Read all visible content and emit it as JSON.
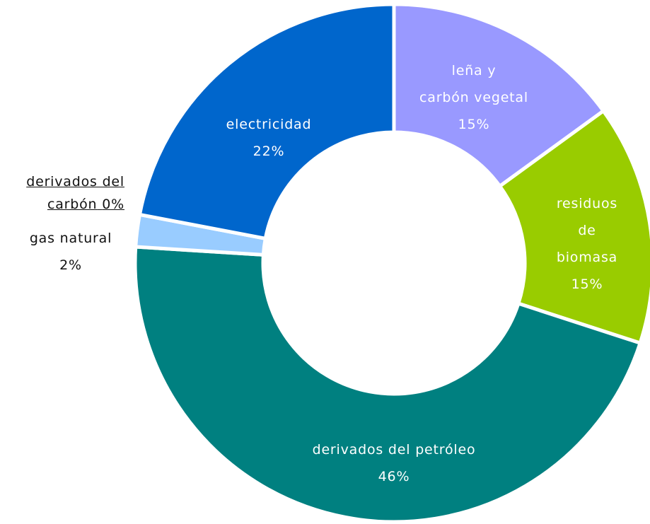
{
  "chart_data": {
    "type": "donut",
    "categories": [
      "leña y\ncarbón vegetal",
      "residuos de\nbiomasa",
      "derivados del petróleo",
      "gas natural",
      "derivados del\ncarbón",
      "electricidad"
    ],
    "values": [
      15,
      15,
      46,
      2,
      0,
      22
    ],
    "value_labels": [
      "15%",
      "15%",
      "46%",
      "2%",
      "0%",
      "22%"
    ],
    "colors": [
      "#9999ff",
      "#99cc00",
      "#008080",
      "#99ccff",
      "#333399",
      "#0066cc"
    ]
  }
}
